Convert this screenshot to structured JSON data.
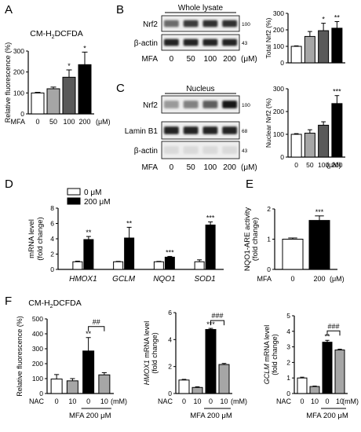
{
  "panel_letters": [
    "A",
    "B",
    "C",
    "D",
    "E",
    "F"
  ],
  "blots": {
    "B": {
      "header": "Whole lysate",
      "rows": [
        {
          "label": "Nrf2",
          "mw": "100",
          "levels": [
            0.55,
            0.75,
            0.8,
            0.8
          ]
        },
        {
          "label": "β-actin",
          "mw": "43",
          "levels": [
            0.85,
            0.85,
            0.85,
            0.85
          ]
        }
      ],
      "treatment_label": "MFA",
      "lanes": [
        "0",
        "50",
        "100",
        "200"
      ],
      "unit": "(μM)"
    },
    "C": {
      "header": "Nucleus",
      "rows": [
        {
          "label": "Nrf2",
          "mw": "100",
          "levels": [
            0.35,
            0.45,
            0.6,
            0.9
          ]
        },
        {
          "label": "Lamin B1",
          "mw": "68",
          "levels": [
            0.85,
            0.85,
            0.85,
            0.85
          ]
        },
        {
          "label": "β-actin",
          "mw": "43",
          "levels": [
            0.08,
            0.08,
            0.08,
            0.08
          ]
        }
      ],
      "treatment_label": "MFA",
      "lanes": [
        "0",
        "50",
        "100",
        "200"
      ],
      "unit": "(μM)"
    }
  },
  "colors": {
    "black": "#000000",
    "dark_gray": "#595959",
    "gray": "#a6a6a6",
    "white": "#ffffff"
  },
  "chart_data": [
    {
      "panel": "A",
      "type": "bar",
      "title": "CM-H2DCFDA",
      "title_main": "CM-H",
      "title_sub": "2",
      "title_tail": "DCFDA",
      "ylabel": "Relative fluorescence (%)",
      "xprefix": "MFA",
      "unit": "(μM)",
      "categories": [
        "0",
        "50",
        "100",
        "200"
      ],
      "values": [
        100,
        120,
        175,
        235
      ],
      "errors": [
        3,
        8,
        35,
        60
      ],
      "sig": [
        "",
        "",
        "*",
        "*"
      ],
      "colors": [
        "#ffffff",
        "#a6a6a6",
        "#595959",
        "#000000"
      ],
      "ylim": [
        0,
        300
      ],
      "yticks": [
        0,
        100,
        200,
        300
      ]
    },
    {
      "panel": "B",
      "type": "bar",
      "ylabel": "Total Nrf2 (%)",
      "categories": [
        "",
        "",
        "",
        ""
      ],
      "values": [
        100,
        160,
        195,
        210
      ],
      "errors": [
        3,
        30,
        45,
        40
      ],
      "sig": [
        "",
        "",
        "*",
        "**"
      ],
      "colors": [
        "#ffffff",
        "#a6a6a6",
        "#595959",
        "#000000"
      ],
      "ylim": [
        0,
        300
      ],
      "yticks": [
        0,
        100,
        200,
        300
      ]
    },
    {
      "panel": "C",
      "type": "bar",
      "ylabel": "Nuclear Nrf2 (%)",
      "categories": [
        "0",
        "50",
        "100",
        "200"
      ],
      "unit": "(μM)",
      "values": [
        100,
        105,
        140,
        235
      ],
      "errors": [
        3,
        15,
        15,
        35
      ],
      "sig": [
        "",
        "",
        "",
        "***"
      ],
      "colors": [
        "#ffffff",
        "#a6a6a6",
        "#595959",
        "#000000"
      ],
      "ylim": [
        0,
        300
      ],
      "yticks": [
        0,
        100,
        200,
        300
      ]
    },
    {
      "panel": "D",
      "type": "bar",
      "ylabel": "mRNA level (fold change)",
      "ylabel_lines": [
        "mRNA level",
        "(fold change)"
      ],
      "categories": [
        "HMOX1",
        "GCLM",
        "NQO1",
        "SOD1"
      ],
      "legend": [
        "0 μM",
        "200 μM"
      ],
      "series": [
        {
          "values": [
            1.0,
            1.0,
            1.0,
            1.0
          ],
          "errors": [
            0.08,
            0.05,
            0.05,
            0.25
          ]
        },
        {
          "values": [
            3.9,
            4.1,
            1.6,
            5.8
          ],
          "errors": [
            0.4,
            1.4,
            0.1,
            0.4
          ]
        }
      ],
      "sig": [
        "**",
        "**",
        "***",
        "***"
      ],
      "ylim": [
        0,
        8
      ],
      "yticks": [
        0,
        2,
        4,
        6,
        8
      ]
    },
    {
      "panel": "E",
      "type": "bar",
      "ylabel": "NQO1-ARE activity (fold change)",
      "ylabel_lines": [
        "NQO1-ARE activity",
        "(fold change)"
      ],
      "xprefix": "MFA",
      "unit": "(μM)",
      "categories": [
        "0",
        "200"
      ],
      "values": [
        1.0,
        1.62
      ],
      "errors": [
        0.04,
        0.15
      ],
      "sig": [
        "",
        "***"
      ],
      "colors": [
        "#ffffff",
        "#000000"
      ],
      "ylim": [
        0,
        2
      ],
      "yticks": [
        0,
        1,
        2
      ]
    },
    {
      "panel": "F1",
      "type": "bar",
      "title": "CM-H2DCFDA",
      "title_main": "CM-H",
      "title_sub": "2",
      "title_tail": "DCFDA",
      "ylabel": "Relative fluorescence (%)",
      "xprefix": "NAC",
      "unit": "(mM)",
      "group_label": "MFA 200 μM",
      "categories": [
        "0",
        "10",
        "0",
        "10"
      ],
      "values": [
        97,
        85,
        285,
        125
      ],
      "errors": [
        30,
        15,
        90,
        15
      ],
      "sig": [
        "",
        "",
        "**",
        ""
      ],
      "bracket": "##",
      "colors": [
        "#ffffff",
        "#a6a6a6",
        "#000000",
        "#a6a6a6"
      ],
      "ylim": [
        0,
        500
      ],
      "yticks": [
        0,
        100,
        200,
        300,
        400,
        500
      ]
    },
    {
      "panel": "F2",
      "type": "bar",
      "ylabel": "HMOX1 mRNA level (fold change)",
      "ylabel_lines": [
        "HMOX1 mRNA level",
        "(fold change)"
      ],
      "xprefix": "NAC",
      "unit": "(mM)",
      "group_label": "MFA 200 μM",
      "categories": [
        "0",
        "10",
        "0",
        "10"
      ],
      "values": [
        1.0,
        0.45,
        4.75,
        2.15
      ],
      "errors": [
        0.05,
        0.05,
        0.08,
        0.08
      ],
      "sig": [
        "",
        "",
        "***",
        ""
      ],
      "bracket": "###",
      "colors": [
        "#ffffff",
        "#a6a6a6",
        "#000000",
        "#a6a6a6"
      ],
      "ylim": [
        0,
        6
      ],
      "yticks": [
        0,
        2,
        4,
        6
      ]
    },
    {
      "panel": "F3",
      "type": "bar",
      "ylabel": "GCLM mRNA level (fold change)",
      "ylabel_lines": [
        "GCLM mRNA level",
        "(fold change)"
      ],
      "xprefix": "NAC",
      "unit": "(mM)",
      "group_label": "MFA 200 μM",
      "categories": [
        "0",
        "10",
        "0",
        "10"
      ],
      "values": [
        1.0,
        0.45,
        3.3,
        2.8
      ],
      "errors": [
        0.05,
        0.03,
        0.12,
        0.05
      ],
      "sig": [
        "",
        "",
        "**",
        ""
      ],
      "bracket": "###",
      "colors": [
        "#ffffff",
        "#a6a6a6",
        "#000000",
        "#a6a6a6"
      ],
      "ylim": [
        0,
        5
      ],
      "yticks": [
        0,
        1,
        2,
        3,
        4,
        5
      ]
    }
  ]
}
